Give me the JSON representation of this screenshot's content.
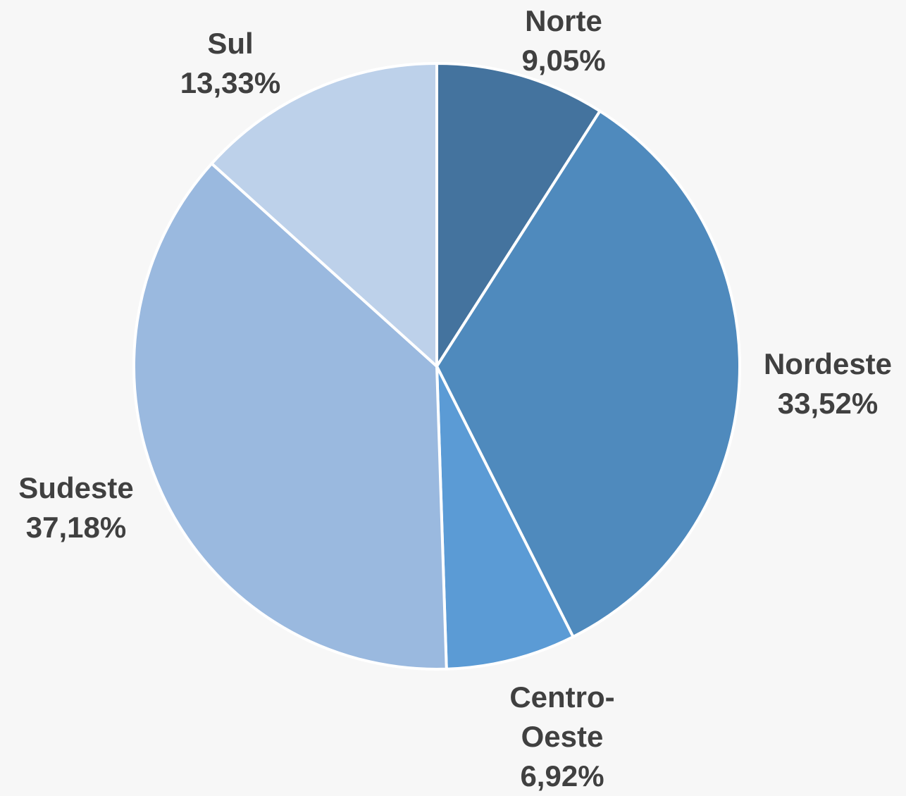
{
  "chart_data": {
    "type": "pie",
    "categories": [
      "Norte",
      "Nordeste",
      "Centro-Oeste",
      "Sudeste",
      "Sul"
    ],
    "values": [
      9.05,
      33.52,
      6.92,
      37.18,
      13.33
    ],
    "value_labels": [
      "9,05%",
      "33,52%",
      "6,92%",
      "37,18%",
      "13,33%"
    ],
    "colors": [
      "#44739e",
      "#4f8abd",
      "#5b9bd5",
      "#9ab9df",
      "#bdd1ea"
    ]
  }
}
